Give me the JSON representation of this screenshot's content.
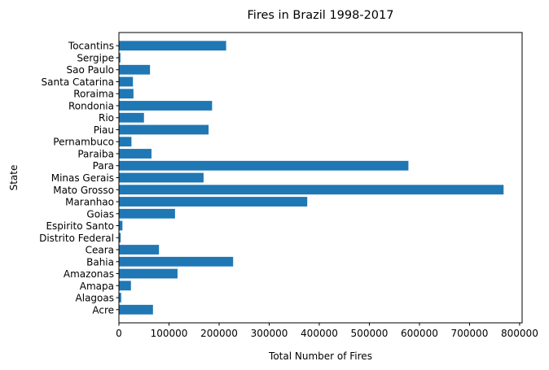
{
  "chart_data": {
    "type": "bar",
    "orientation": "horizontal",
    "title": "Fires in Brazil 1998-2017",
    "xlabel": "Total Number of Fires",
    "ylabel": "State",
    "xlim": [
      0,
      805000
    ],
    "xticks": [
      0,
      100000,
      200000,
      300000,
      400000,
      500000,
      600000,
      700000,
      800000
    ],
    "xtick_labels": [
      "0",
      "100000",
      "200000",
      "300000",
      "400000",
      "500000",
      "600000",
      "700000",
      "800000"
    ],
    "grid": false,
    "color": "#1f77b4",
    "categories": [
      "Acre",
      "Alagoas",
      "Amapa",
      "Amazonas",
      "Bahia",
      "Ceara",
      "Distrito Federal",
      "Espirito Santo",
      "Goias",
      "Maranhao",
      "Mato Grosso",
      "Minas Gerais",
      "Para",
      "Paraiba",
      "Pernambuco",
      "Piau",
      "Rio",
      "Rondonia",
      "Roraima",
      "Santa Catarina",
      "Sao Paulo",
      "Sergipe",
      "Tocantins"
    ],
    "values": [
      68000,
      4500,
      24000,
      117000,
      228000,
      80000,
      3500,
      7000,
      112000,
      376000,
      768000,
      169000,
      578000,
      65000,
      25000,
      179000,
      50000,
      186000,
      29000,
      28000,
      62000,
      3000,
      214000
    ]
  }
}
